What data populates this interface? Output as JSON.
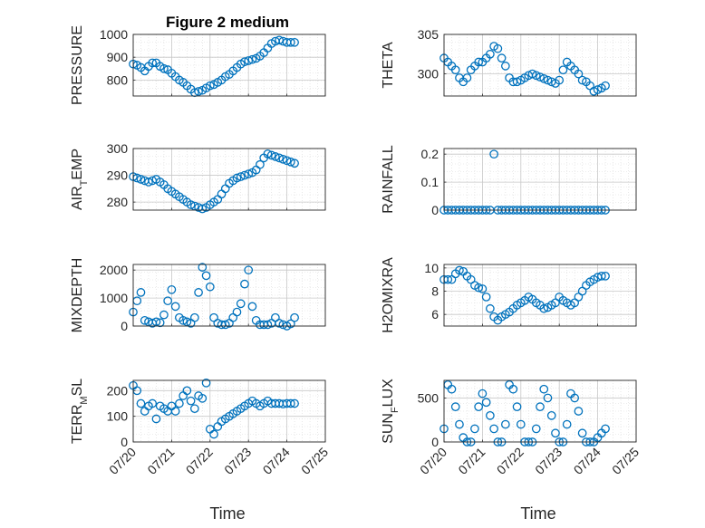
{
  "title": "Figure 2 medium",
  "xlabel": "Time",
  "marker_color": "#0072BD",
  "chart_data": [
    {
      "type": "scatter",
      "ylabel": "PRESSURE",
      "ylim": [
        730,
        1000
      ],
      "yticks": [
        800,
        900,
        1000
      ],
      "xticks": [
        "07/20",
        "07/21",
        "07/22",
        "07/23",
        "07/24",
        "07/25"
      ],
      "x": [
        0.0,
        0.1,
        0.2,
        0.3,
        0.4,
        0.5,
        0.6,
        0.7,
        0.8,
        0.9,
        1.0,
        1.1,
        1.2,
        1.3,
        1.4,
        1.5,
        1.6,
        1.7,
        1.8,
        1.9,
        2.0,
        2.1,
        2.2,
        2.3,
        2.4,
        2.5,
        2.6,
        2.7,
        2.8,
        2.9,
        3.0,
        3.1,
        3.2,
        3.3,
        3.4,
        3.5,
        3.6,
        3.7,
        3.8,
        3.9,
        4.0,
        4.1,
        4.2
      ],
      "y": [
        870,
        865,
        855,
        840,
        860,
        875,
        875,
        860,
        850,
        845,
        830,
        815,
        800,
        790,
        775,
        760,
        745,
        750,
        755,
        765,
        775,
        780,
        790,
        800,
        815,
        825,
        840,
        855,
        870,
        880,
        885,
        890,
        895,
        905,
        920,
        940,
        960,
        970,
        975,
        970,
        965,
        965,
        965
      ]
    },
    {
      "type": "scatter",
      "ylabel": "THETA",
      "ylim": [
        297.2,
        305
      ],
      "yticks": [
        300,
        305
      ],
      "xticks": [
        "07/20",
        "07/21",
        "07/22",
        "07/23",
        "07/24",
        "07/25"
      ],
      "x": [
        0.0,
        0.1,
        0.2,
        0.3,
        0.4,
        0.5,
        0.6,
        0.7,
        0.8,
        0.9,
        1.0,
        1.1,
        1.2,
        1.3,
        1.4,
        1.5,
        1.6,
        1.7,
        1.8,
        1.9,
        2.0,
        2.1,
        2.2,
        2.3,
        2.4,
        2.5,
        2.6,
        2.7,
        2.8,
        2.9,
        3.0,
        3.1,
        3.2,
        3.3,
        3.4,
        3.5,
        3.6,
        3.7,
        3.8,
        3.9,
        4.0,
        4.1,
        4.2
      ],
      "y": [
        302.0,
        301.5,
        301.0,
        300.5,
        299.5,
        299.0,
        299.5,
        300.5,
        301.0,
        301.5,
        301.5,
        302.0,
        302.5,
        303.5,
        303.2,
        302.0,
        301.0,
        299.5,
        299.0,
        299.0,
        299.2,
        299.5,
        299.8,
        300.0,
        299.8,
        299.6,
        299.4,
        299.2,
        299.0,
        298.8,
        299.2,
        300.5,
        301.5,
        301.0,
        300.5,
        300.0,
        299.2,
        299.0,
        298.5,
        297.8,
        298.0,
        298.2,
        298.5
      ]
    },
    {
      "type": "scatter",
      "ylabel": "AIR_TEMP",
      "ylim": [
        277,
        300
      ],
      "yticks": [
        280,
        290,
        300
      ],
      "xticks": [
        "07/20",
        "07/21",
        "07/22",
        "07/23",
        "07/24",
        "07/25"
      ],
      "x": [
        0.0,
        0.1,
        0.2,
        0.3,
        0.4,
        0.5,
        0.6,
        0.7,
        0.8,
        0.9,
        1.0,
        1.1,
        1.2,
        1.3,
        1.4,
        1.5,
        1.6,
        1.7,
        1.8,
        1.9,
        2.0,
        2.1,
        2.2,
        2.3,
        2.4,
        2.5,
        2.6,
        2.7,
        2.8,
        2.9,
        3.0,
        3.1,
        3.2,
        3.3,
        3.4,
        3.5,
        3.6,
        3.7,
        3.8,
        3.9,
        4.0,
        4.1,
        4.2
      ],
      "y": [
        289.5,
        289.0,
        288.5,
        288.0,
        287.5,
        288.0,
        288.5,
        287.5,
        286.5,
        285.0,
        284.0,
        283.0,
        282.0,
        281.0,
        280.0,
        279.0,
        278.5,
        278.0,
        277.5,
        278.0,
        279.0,
        280.0,
        281.0,
        283.0,
        285.0,
        287.0,
        288.0,
        289.0,
        289.5,
        290.0,
        290.5,
        291.0,
        292.0,
        294.0,
        296.5,
        298.0,
        297.5,
        297.0,
        296.5,
        296.0,
        295.5,
        295.0,
        294.5
      ]
    },
    {
      "type": "scatter",
      "ylabel": "RAINFALL",
      "ylim": [
        0,
        0.22
      ],
      "yticks": [
        0,
        0.1,
        0.2
      ],
      "xticks": [
        "07/20",
        "07/21",
        "07/22",
        "07/23",
        "07/24",
        "07/25"
      ],
      "x": [
        0.0,
        0.1,
        0.2,
        0.3,
        0.4,
        0.5,
        0.6,
        0.7,
        0.8,
        0.9,
        1.0,
        1.1,
        1.2,
        1.3,
        1.4,
        1.5,
        1.6,
        1.7,
        1.8,
        1.9,
        2.0,
        2.1,
        2.2,
        2.3,
        2.4,
        2.5,
        2.6,
        2.7,
        2.8,
        2.9,
        3.0,
        3.1,
        3.2,
        3.3,
        3.4,
        3.5,
        3.6,
        3.7,
        3.8,
        3.9,
        4.0,
        4.1,
        4.2
      ],
      "y": [
        0,
        0,
        0,
        0,
        0,
        0,
        0,
        0,
        0,
        0,
        0,
        0,
        0,
        0.2,
        0,
        0,
        0,
        0,
        0,
        0,
        0,
        0,
        0,
        0,
        0,
        0,
        0,
        0,
        0,
        0,
        0,
        0,
        0,
        0,
        0,
        0,
        0,
        0,
        0,
        0,
        0,
        0,
        0
      ]
    },
    {
      "type": "scatter",
      "ylabel": "MIXDEPTH",
      "ylim": [
        0,
        2200
      ],
      "yticks": [
        0,
        1000,
        2000
      ],
      "xticks": [
        "07/20",
        "07/21",
        "07/22",
        "07/23",
        "07/24",
        "07/25"
      ],
      "x": [
        0.0,
        0.1,
        0.2,
        0.3,
        0.4,
        0.5,
        0.6,
        0.7,
        0.8,
        0.9,
        1.0,
        1.1,
        1.2,
        1.3,
        1.4,
        1.5,
        1.6,
        1.7,
        1.8,
        1.9,
        2.0,
        2.1,
        2.2,
        2.3,
        2.4,
        2.5,
        2.6,
        2.7,
        2.8,
        2.9,
        3.0,
        3.1,
        3.2,
        3.3,
        3.4,
        3.5,
        3.6,
        3.7,
        3.8,
        3.9,
        4.0,
        4.1,
        4.2
      ],
      "y": [
        500,
        900,
        1200,
        200,
        150,
        100,
        150,
        120,
        400,
        900,
        1300,
        700,
        300,
        200,
        150,
        100,
        300,
        1200,
        2100,
        1800,
        1400,
        300,
        100,
        50,
        50,
        100,
        300,
        500,
        800,
        1500,
        2000,
        700,
        200,
        50,
        50,
        50,
        100,
        300,
        100,
        50,
        0,
        80,
        300
      ]
    },
    {
      "type": "scatter",
      "ylabel": "H2OMIXRA",
      "ylim": [
        5,
        10.3
      ],
      "yticks": [
        6,
        8,
        10
      ],
      "xticks": [
        "07/20",
        "07/21",
        "07/22",
        "07/23",
        "07/24",
        "07/25"
      ],
      "x": [
        0.0,
        0.1,
        0.2,
        0.3,
        0.4,
        0.5,
        0.6,
        0.7,
        0.8,
        0.9,
        1.0,
        1.1,
        1.2,
        1.3,
        1.4,
        1.5,
        1.6,
        1.7,
        1.8,
        1.9,
        2.0,
        2.1,
        2.2,
        2.3,
        2.4,
        2.5,
        2.6,
        2.7,
        2.8,
        2.9,
        3.0,
        3.1,
        3.2,
        3.3,
        3.4,
        3.5,
        3.6,
        3.7,
        3.8,
        3.9,
        4.0,
        4.1,
        4.2
      ],
      "y": [
        9.0,
        9.0,
        9.0,
        9.5,
        9.8,
        9.7,
        9.3,
        9.0,
        8.5,
        8.3,
        8.2,
        7.5,
        6.5,
        5.8,
        5.5,
        5.8,
        6.0,
        6.2,
        6.5,
        6.8,
        7.0,
        7.2,
        7.5,
        7.3,
        7.0,
        6.8,
        6.5,
        6.6,
        6.8,
        7.0,
        7.5,
        7.2,
        7.0,
        6.8,
        7.0,
        7.5,
        8.0,
        8.5,
        8.8,
        9.0,
        9.2,
        9.3,
        9.3
      ]
    },
    {
      "type": "scatter",
      "ylabel": "TERR_MSL",
      "ylim": [
        0,
        240
      ],
      "yticks": [
        0,
        100,
        200
      ],
      "xticks": [
        "07/20",
        "07/21",
        "07/22",
        "07/23",
        "07/24",
        "07/25"
      ],
      "x": [
        0.0,
        0.1,
        0.2,
        0.3,
        0.4,
        0.5,
        0.6,
        0.7,
        0.8,
        0.9,
        1.0,
        1.1,
        1.2,
        1.3,
        1.4,
        1.5,
        1.6,
        1.7,
        1.8,
        1.9,
        2.0,
        2.1,
        2.2,
        2.3,
        2.4,
        2.5,
        2.6,
        2.7,
        2.8,
        2.9,
        3.0,
        3.1,
        3.2,
        3.3,
        3.4,
        3.5,
        3.6,
        3.7,
        3.8,
        3.9,
        4.0,
        4.1,
        4.2
      ],
      "y": [
        220,
        200,
        150,
        120,
        140,
        150,
        90,
        140,
        130,
        120,
        140,
        120,
        150,
        180,
        200,
        160,
        130,
        180,
        170,
        230,
        50,
        30,
        60,
        80,
        90,
        100,
        110,
        120,
        130,
        140,
        150,
        160,
        150,
        140,
        150,
        160,
        150,
        150,
        150,
        148,
        150,
        150,
        150
      ]
    },
    {
      "type": "scatter",
      "ylabel": "SUN_FLUX",
      "ylim": [
        0,
        700
      ],
      "yticks": [
        0,
        500
      ],
      "xticks": [
        "07/20",
        "07/21",
        "07/22",
        "07/23",
        "07/24",
        "07/25"
      ],
      "x": [
        0.0,
        0.1,
        0.2,
        0.3,
        0.4,
        0.5,
        0.6,
        0.7,
        0.8,
        0.9,
        1.0,
        1.1,
        1.2,
        1.3,
        1.4,
        1.5,
        1.6,
        1.7,
        1.8,
        1.9,
        2.0,
        2.1,
        2.2,
        2.3,
        2.4,
        2.5,
        2.6,
        2.7,
        2.8,
        2.9,
        3.0,
        3.1,
        3.2,
        3.3,
        3.4,
        3.5,
        3.6,
        3.7,
        3.8,
        3.9,
        4.0,
        4.1,
        4.2
      ],
      "y": [
        150,
        650,
        600,
        400,
        200,
        50,
        0,
        0,
        150,
        400,
        550,
        450,
        300,
        150,
        0,
        0,
        200,
        650,
        600,
        400,
        200,
        0,
        0,
        0,
        150,
        400,
        600,
        500,
        300,
        100,
        0,
        0,
        200,
        550,
        500,
        350,
        100,
        0,
        0,
        0,
        50,
        100,
        150
      ]
    }
  ]
}
